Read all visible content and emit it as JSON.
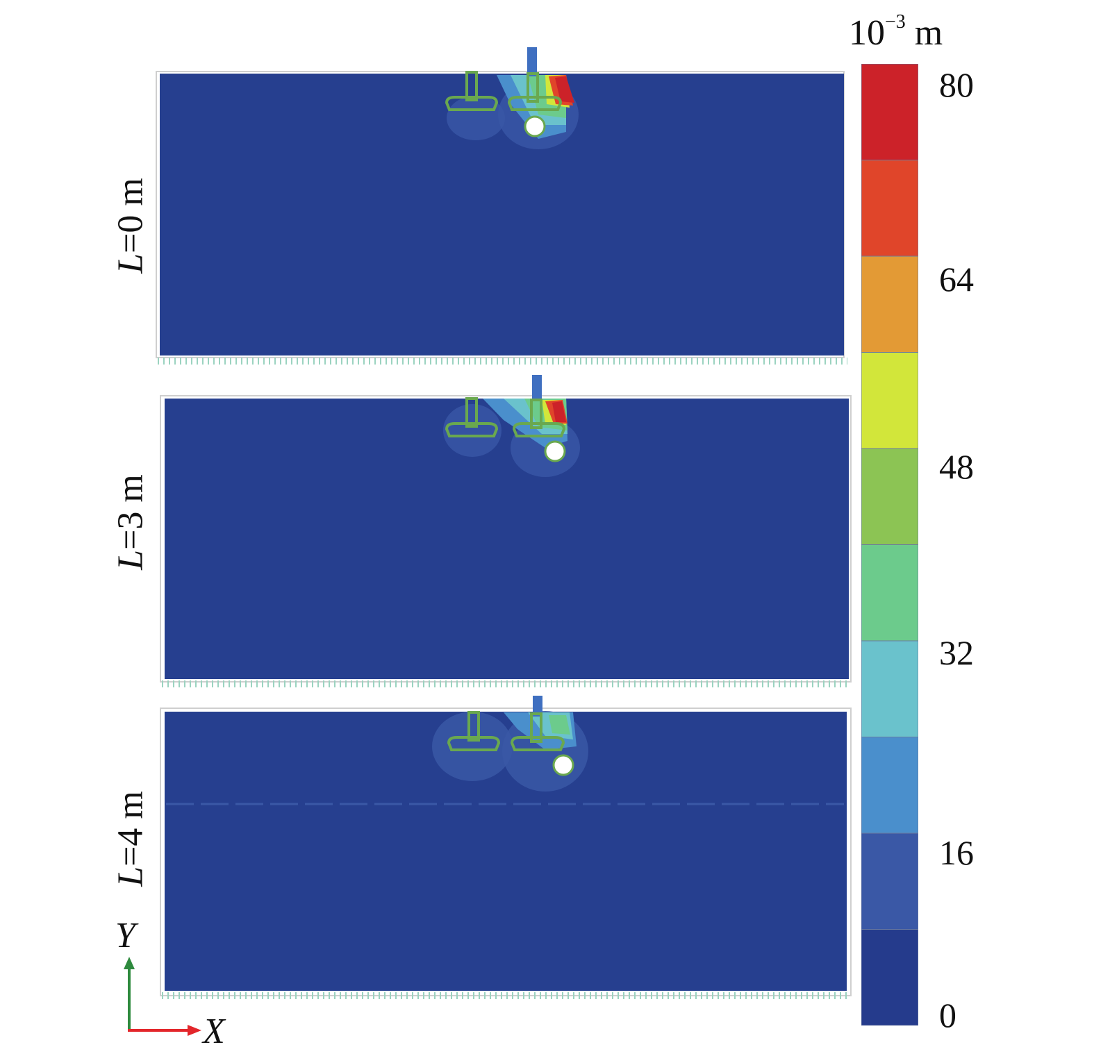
{
  "panels": [
    {
      "id": "l0",
      "label_var": "L",
      "label_rest": "=0 m"
    },
    {
      "id": "l3",
      "label_var": "L",
      "label_rest": "=3 m"
    },
    {
      "id": "l4",
      "label_var": "L",
      "label_rest": "=4 m"
    }
  ],
  "legend": {
    "unit_base": "10",
    "unit_exp": "−3",
    "unit_suffix": " m",
    "ticks": [
      "80",
      "64",
      "48",
      "32",
      "16",
      "0"
    ],
    "colors": [
      "#253b8c",
      "#3a58a6",
      "#4a8fcc",
      "#6ac2cc",
      "#6ccb8c",
      "#8cc454",
      "#d2e63a",
      "#e39a35",
      "#e0452a",
      "#cc2229"
    ]
  },
  "axes": {
    "x_label": "X",
    "y_label": "Y"
  },
  "colors": {
    "background_field": "#263f8f",
    "axis_x": "#e3262b",
    "axis_y": "#2e8a3e"
  }
}
